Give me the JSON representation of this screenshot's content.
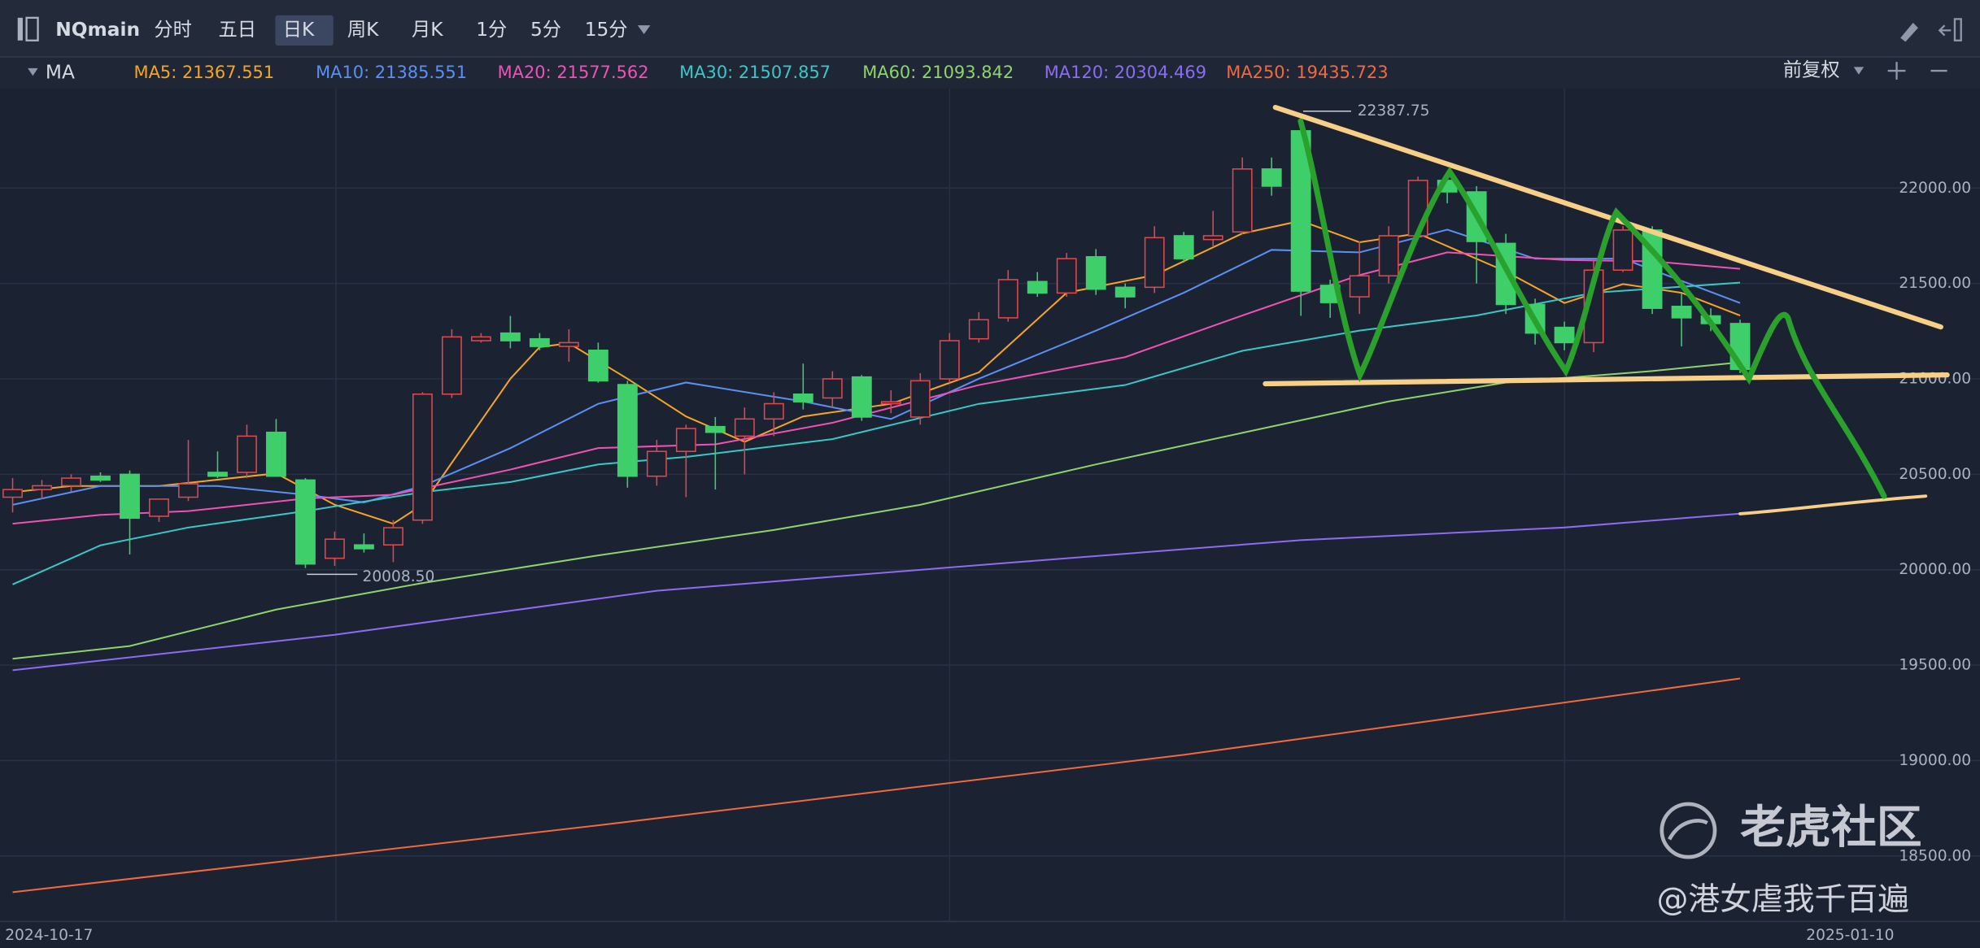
{
  "toolbar": {
    "symbol": "NQmain",
    "tabs": [
      "分时",
      "五日",
      "日K",
      "周K",
      "月K",
      "1分",
      "5分",
      "15分"
    ],
    "active": 2
  },
  "indicator_bar": {
    "label": "MA",
    "adjust": "前复权"
  },
  "watermark": {
    "brand": "老虎社区",
    "user": "@港女虐我千百遍"
  },
  "chart_data": {
    "type": "candlestick",
    "categories": [
      "2024-10-17",
      null,
      null,
      null,
      null,
      null,
      null,
      null,
      null,
      null,
      null,
      null,
      null,
      null,
      null,
      null,
      null,
      null,
      null,
      null,
      null,
      null,
      null,
      null,
      null,
      null,
      null,
      null,
      null,
      null,
      null,
      null,
      null,
      null,
      null,
      null,
      null,
      null,
      null,
      null,
      null,
      null,
      null,
      null,
      null,
      null,
      null,
      null,
      null,
      null,
      null,
      null,
      null,
      null,
      null,
      null,
      null,
      null,
      null,
      "2025-01-10"
    ],
    "ohlc": [
      [
        20380,
        20480,
        20300,
        20420
      ],
      [
        20420,
        20470,
        20370,
        20440
      ],
      [
        20440,
        20500,
        20410,
        20480
      ],
      [
        20490,
        20510,
        20460,
        20470
      ],
      [
        20500,
        20520,
        20080,
        20270
      ],
      [
        20280,
        20360,
        20250,
        20370
      ],
      [
        20380,
        20680,
        20360,
        20450
      ],
      [
        20510,
        20620,
        20480,
        20490
      ],
      [
        20510,
        20760,
        20480,
        20700
      ],
      [
        20720,
        20790,
        20490,
        20490
      ],
      [
        20470,
        20480,
        20008.5,
        20030
      ],
      [
        20060,
        20200,
        20020,
        20160
      ],
      [
        20130,
        20190,
        20090,
        20110
      ],
      [
        20130,
        20260,
        20040,
        20220
      ],
      [
        20260,
        20930,
        20240,
        20920
      ],
      [
        20920,
        21260,
        20900,
        21220
      ],
      [
        21200,
        21240,
        21190,
        21220
      ],
      [
        21240,
        21330,
        21160,
        21200
      ],
      [
        21210,
        21240,
        21150,
        21170
      ],
      [
        21170,
        21260,
        21090,
        21190
      ],
      [
        21150,
        21190,
        20980,
        20990
      ],
      [
        20970,
        20990,
        20430,
        20490
      ],
      [
        20490,
        20680,
        20440,
        20620
      ],
      [
        20620,
        20760,
        20380,
        20740
      ],
      [
        20750,
        20800,
        20420,
        20720
      ],
      [
        20700,
        20850,
        20500,
        20790
      ],
      [
        20790,
        20930,
        20700,
        20870
      ],
      [
        20920,
        21080,
        20840,
        20880
      ],
      [
        20900,
        21040,
        20850,
        21000
      ],
      [
        21010,
        21020,
        20780,
        20800
      ],
      [
        20870,
        20940,
        20820,
        20880
      ],
      [
        20800,
        21030,
        20760,
        20990
      ],
      [
        21000,
        21240,
        20980,
        21200
      ],
      [
        21210,
        21350,
        21190,
        21310
      ],
      [
        21320,
        21570,
        21300,
        21520
      ],
      [
        21510,
        21560,
        21430,
        21450
      ],
      [
        21450,
        21660,
        21430,
        21630
      ],
      [
        21640,
        21680,
        21440,
        21470
      ],
      [
        21480,
        21500,
        21370,
        21430
      ],
      [
        21480,
        21800,
        21450,
        21740
      ],
      [
        21750,
        21770,
        21610,
        21630
      ],
      [
        21730,
        21880,
        21690,
        21750
      ],
      [
        21770,
        22160,
        21760,
        22100
      ],
      [
        22100,
        22160,
        21960,
        22010
      ],
      [
        22300,
        22387.75,
        21330,
        21460
      ],
      [
        21490,
        21520,
        21320,
        21400
      ],
      [
        21430,
        21720,
        21340,
        21540
      ],
      [
        21540,
        21800,
        21500,
        21750
      ],
      [
        21750,
        22060,
        21730,
        22040
      ],
      [
        22040,
        22060,
        21920,
        21980
      ],
      [
        21980,
        22010,
        21500,
        21720
      ],
      [
        21710,
        21760,
        21340,
        21390
      ],
      [
        21390,
        21420,
        21180,
        21240
      ],
      [
        21270,
        21300,
        21150,
        21190
      ],
      [
        21190,
        21620,
        21140,
        21570
      ],
      [
        21570,
        21800,
        21560,
        21780
      ],
      [
        21780,
        21800,
        21340,
        21370
      ],
      [
        21380,
        21450,
        21170,
        21320
      ],
      [
        21330,
        21370,
        21250,
        21290
      ],
      [
        21290,
        21310,
        21030,
        21050
      ]
    ],
    "up_color": "#e2474b",
    "down_color": "#3ecf6b",
    "max_label": "22387.75",
    "min_label": "20008.50",
    "series": [
      {
        "name": "MA5: 21367.551",
        "color": "#f5a524",
        "x": [
          0,
          2,
          5,
          9,
          11,
          13,
          14,
          17,
          18,
          19,
          21,
          23,
          25,
          27,
          30,
          33,
          36,
          39,
          42,
          44,
          46,
          48,
          51,
          53,
          55,
          57,
          59
        ],
        "values": [
          20406,
          20439,
          20439,
          20505,
          20340,
          20241,
          20340,
          21001,
          21167,
          21187,
          21001,
          20803,
          20670,
          20803,
          20869,
          21034,
          21451,
          21544,
          21762,
          21828,
          21716,
          21762,
          21563,
          21398,
          21497,
          21451,
          21332
        ]
      },
      {
        "name": "MA10: 21385.551",
        "color": "#5b8ff2",
        "x": [
          0,
          3,
          7,
          10,
          12,
          14,
          17,
          20,
          23,
          27,
          30,
          33,
          37,
          40,
          43,
          46,
          49,
          52,
          55,
          59
        ],
        "values": [
          20340,
          20439,
          20439,
          20393,
          20353,
          20439,
          20637,
          20869,
          20981,
          20882,
          20790,
          21001,
          21253,
          21451,
          21676,
          21663,
          21782,
          21630,
          21630,
          21398
        ]
      },
      {
        "name": "MA20: 21577.562",
        "color": "#f052b4",
        "x": [
          0,
          3,
          6,
          10,
          13,
          17,
          20,
          24,
          28,
          33,
          38,
          42,
          46,
          49,
          53,
          56,
          59
        ],
        "values": [
          20241,
          20287,
          20307,
          20373,
          20393,
          20525,
          20637,
          20657,
          20770,
          20968,
          21114,
          21332,
          21544,
          21663,
          21623,
          21616,
          21577
        ]
      },
      {
        "name": "MA30: 21507.857",
        "color": "#3cc6c6",
        "x": [
          0,
          3,
          6,
          10,
          14,
          17,
          20,
          23,
          28,
          33,
          38,
          42,
          46,
          50,
          54,
          59
        ],
        "values": [
          19923,
          20128,
          20221,
          20307,
          20406,
          20459,
          20552,
          20591,
          20684,
          20869,
          20968,
          21147,
          21253,
          21332,
          21451,
          21504
        ]
      },
      {
        "name": "MA60: 21093.842",
        "color": "#8fd36c",
        "x": [
          0,
          4,
          9,
          14,
          20,
          26,
          31,
          37,
          42,
          47,
          51,
          56,
          59
        ],
        "values": [
          19533,
          19600,
          19791,
          19930,
          20075,
          20208,
          20340,
          20552,
          20717,
          20882,
          20981,
          21041,
          21087
        ]
      },
      {
        "name": "MA120: 20304.469",
        "color": "#8b6cf2",
        "x": [
          0,
          11,
          22,
          34,
          44,
          53,
          59
        ],
        "values": [
          19473,
          19659,
          19890,
          20036,
          20155,
          20221,
          20294
        ]
      },
      {
        "name": "MA250: 19435.723",
        "color": "#f2693d",
        "x": [
          0,
          20,
          40,
          59
        ],
        "values": [
          18310,
          18660,
          19030,
          19430
        ]
      }
    ],
    "ylim": [
      18157,
      22522
    ],
    "yticks": [
      {
        "value": 18500,
        "label": "18500.00"
      },
      {
        "value": 19000,
        "label": "19000.00"
      },
      {
        "value": 19500,
        "label": "19500.00"
      },
      {
        "value": 20000,
        "label": "20000.00"
      },
      {
        "value": 20500,
        "label": "20500.00"
      },
      {
        "value": 21000,
        "label": "21000.00"
      },
      {
        "value": 21500,
        "label": "21500.00"
      },
      {
        "value": 22000,
        "label": "22000.00"
      }
    ],
    "grid": true
  }
}
